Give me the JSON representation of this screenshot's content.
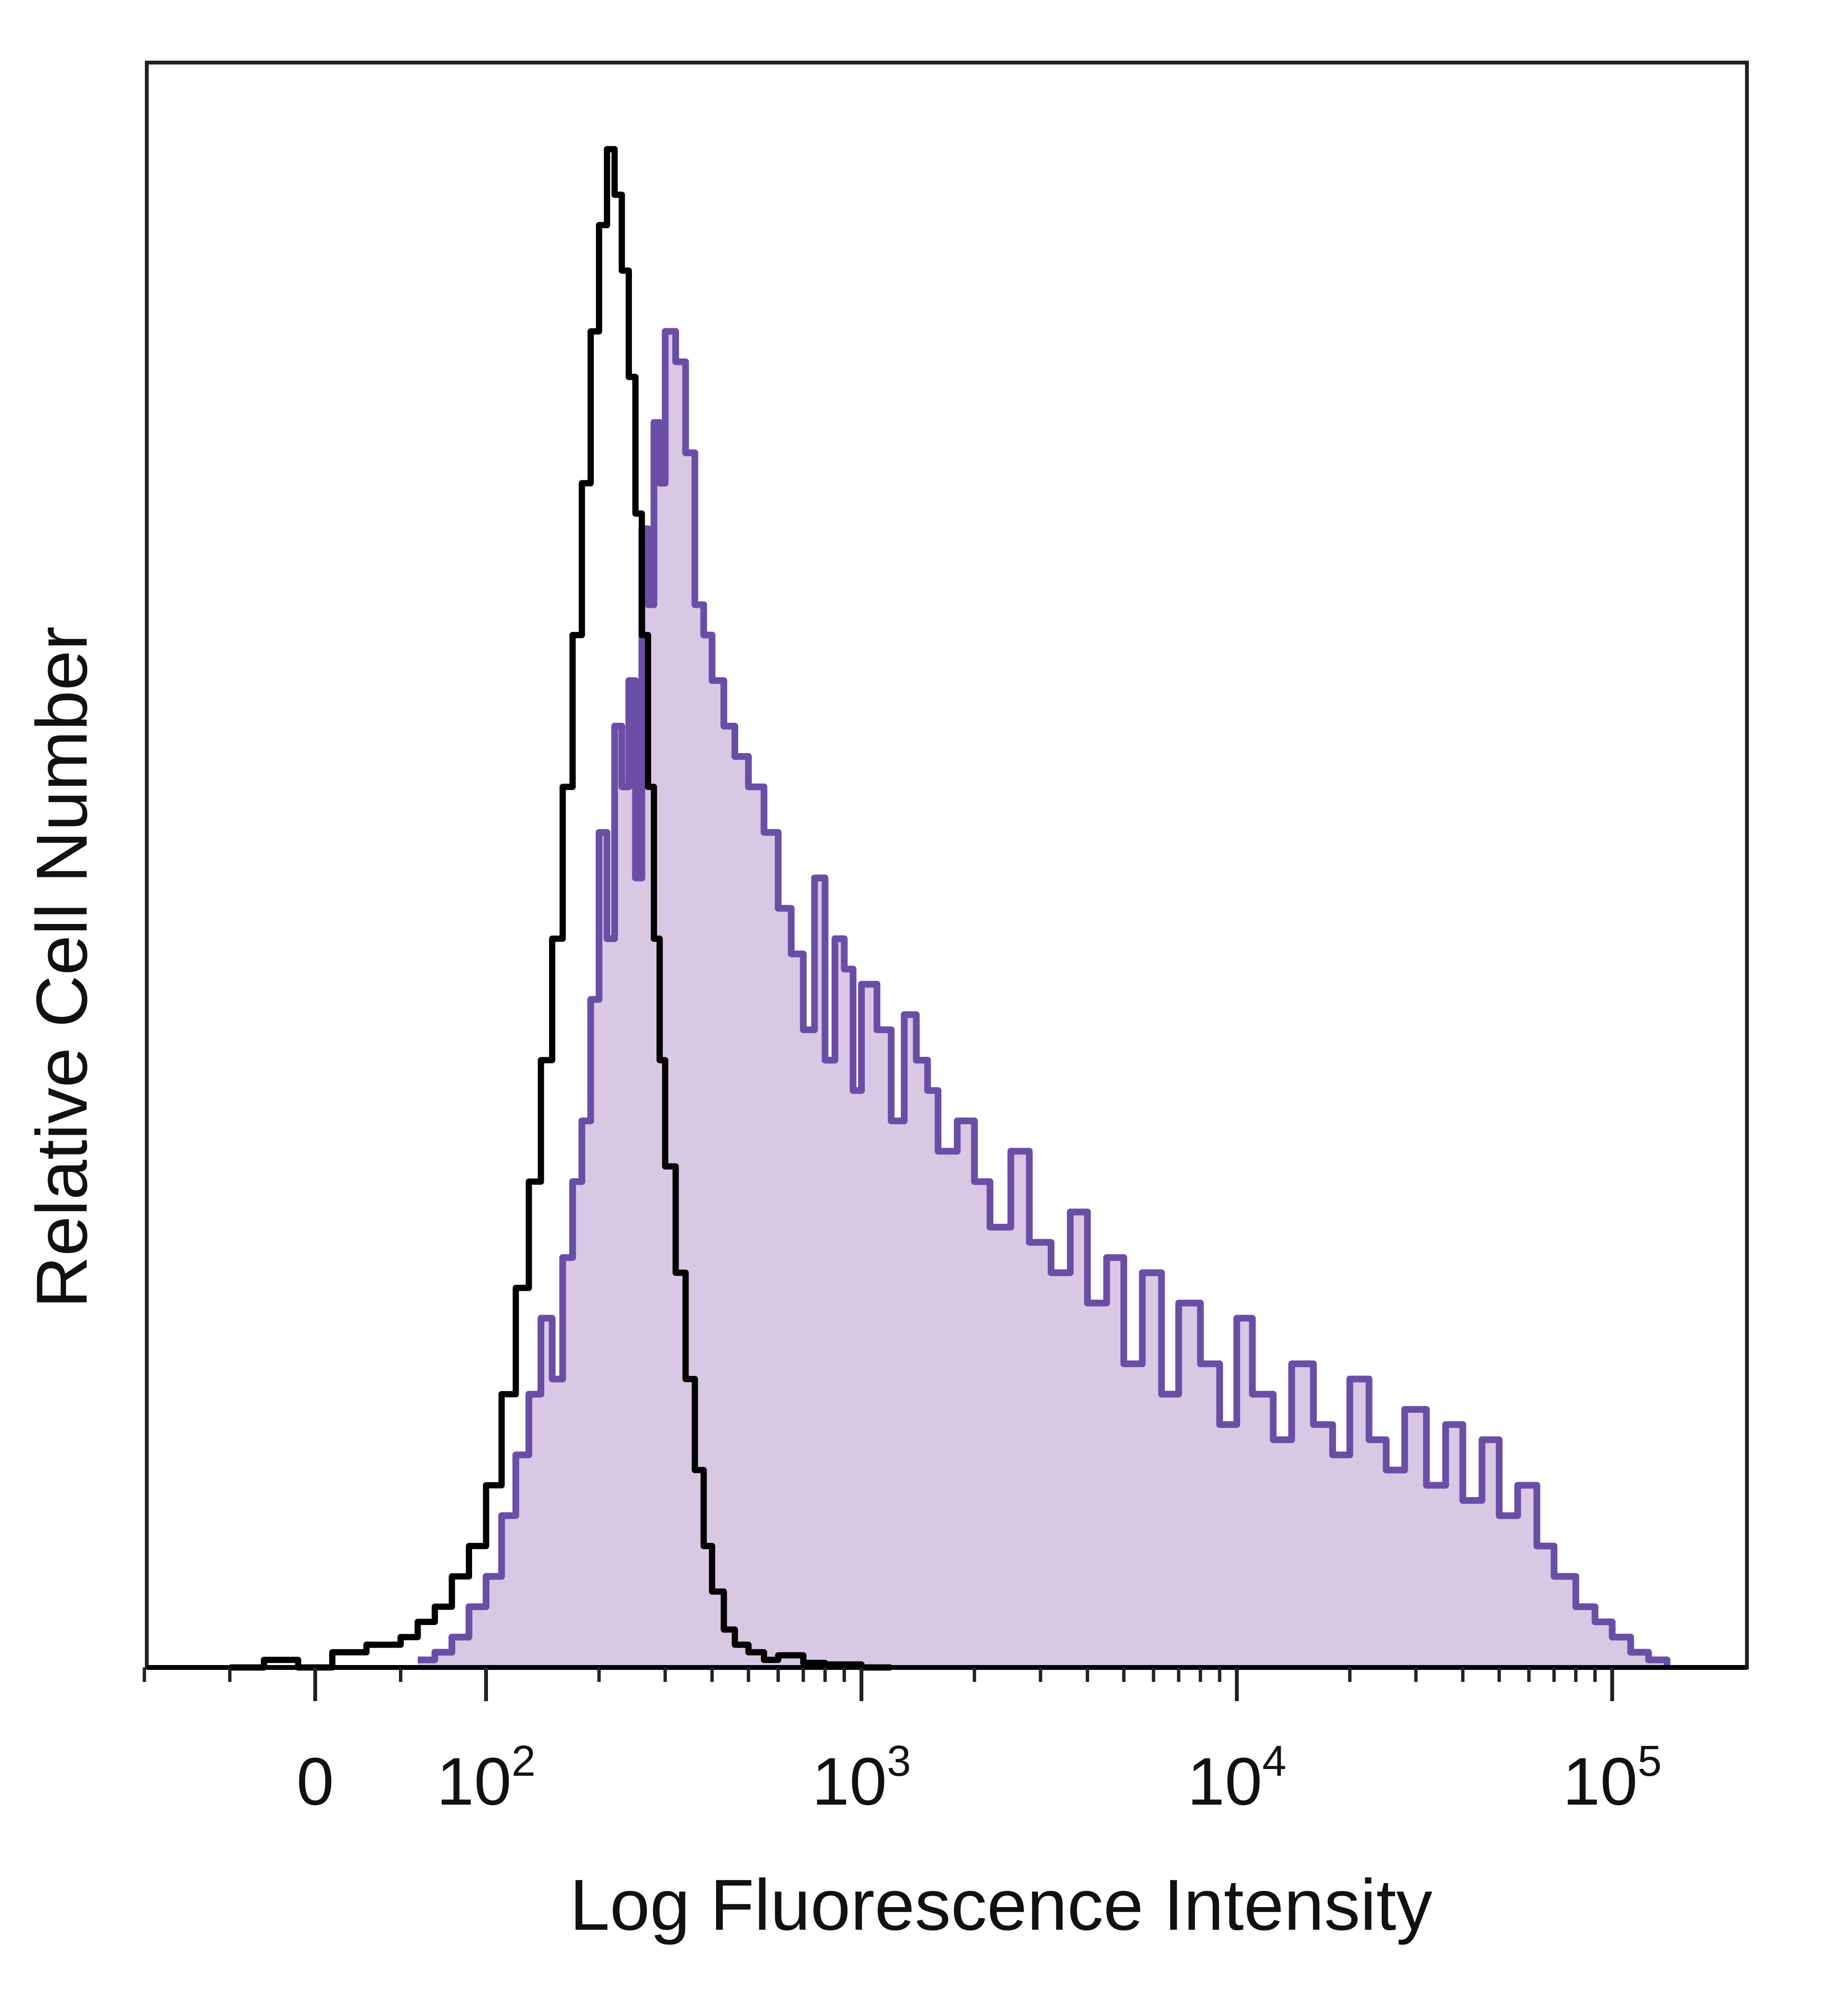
{
  "chart_data": {
    "type": "area",
    "xlabel": "Log Fluorescence Intensity",
    "ylabel": "Relative Cell Number",
    "x_scale": "log",
    "x_range": [
      -50,
      200000
    ],
    "ylim": [
      0,
      100
    ],
    "grid": false,
    "legend": "none",
    "x_ticks": [
      {
        "value": 0,
        "label": "0"
      },
      {
        "value": 100,
        "base": "10",
        "exp": "2"
      },
      {
        "value": 1000,
        "base": "10",
        "exp": "3"
      },
      {
        "value": 10000,
        "base": "10",
        "exp": "4"
      },
      {
        "value": 100000,
        "base": "10",
        "exp": "5"
      }
    ],
    "colors": {
      "stained_line": "#6a4ea6",
      "stained_fill": "#d9c8e4",
      "control_line": "#000000",
      "frame": "#222222"
    },
    "series": [
      {
        "role": "stained",
        "style": "filled",
        "x": [
          60,
          70,
          80,
          90,
          100,
          110,
          120,
          130,
          140,
          150,
          160,
          170,
          180,
          190,
          200,
          210,
          220,
          230,
          240,
          250,
          260,
          270,
          280,
          290,
          300,
          320,
          340,
          360,
          380,
          400,
          430,
          460,
          500,
          550,
          600,
          650,
          700,
          750,
          800,
          850,
          900,
          950,
          1000,
          1100,
          1200,
          1300,
          1400,
          1500,
          1600,
          1800,
          2000,
          2200,
          2500,
          2800,
          3200,
          3600,
          4000,
          4500,
          5000,
          5600,
          6300,
          7000,
          8000,
          9000,
          10000,
          11000,
          12500,
          14000,
          16000,
          18000,
          20000,
          22500,
          25000,
          28000,
          32000,
          36000,
          40000,
          45000,
          50000,
          56000,
          63000,
          70000,
          80000,
          90000,
          100000,
          112000,
          125000,
          140000
        ],
        "y": [
          0.5,
          1,
          2,
          4,
          6,
          10,
          14,
          18,
          23,
          19,
          27,
          32,
          36,
          44,
          55,
          48,
          62,
          58,
          65,
          52,
          75,
          70,
          82,
          78,
          88,
          86,
          80,
          70,
          68,
          65,
          62,
          60,
          58,
          55,
          50,
          47,
          42,
          52,
          40,
          48,
          46,
          38,
          45,
          42,
          36,
          43,
          40,
          38,
          34,
          36,
          32,
          29,
          34,
          28,
          26,
          30,
          24,
          27,
          20,
          26,
          18,
          24,
          20,
          16,
          23,
          18,
          15,
          20,
          16,
          14,
          19,
          15,
          13,
          17,
          12,
          16,
          11,
          15,
          10,
          12,
          8,
          6,
          4,
          3,
          2,
          1,
          0.5,
          0
        ]
      },
      {
        "role": "control",
        "style": "line",
        "x": [
          -50,
          -30,
          -10,
          10,
          30,
          50,
          60,
          70,
          80,
          90,
          100,
          110,
          120,
          130,
          140,
          150,
          160,
          170,
          180,
          190,
          200,
          210,
          220,
          230,
          240,
          250,
          260,
          270,
          280,
          290,
          300,
          320,
          340,
          360,
          380,
          400,
          430,
          460,
          500,
          550,
          600,
          700,
          800,
          1000,
          1200
        ],
        "y": [
          0,
          0.5,
          0,
          1,
          1.5,
          2,
          3,
          4,
          6,
          8,
          12,
          18,
          25,
          32,
          40,
          48,
          58,
          68,
          78,
          88,
          95,
          100,
          97,
          92,
          85,
          76,
          68,
          58,
          48,
          40,
          33,
          26,
          19,
          13,
          8,
          5,
          2.5,
          1.5,
          1,
          0.5,
          0.8,
          0.3,
          0.2,
          0,
          0
        ]
      }
    ]
  },
  "colors": {
    "background": "#ffffff"
  }
}
